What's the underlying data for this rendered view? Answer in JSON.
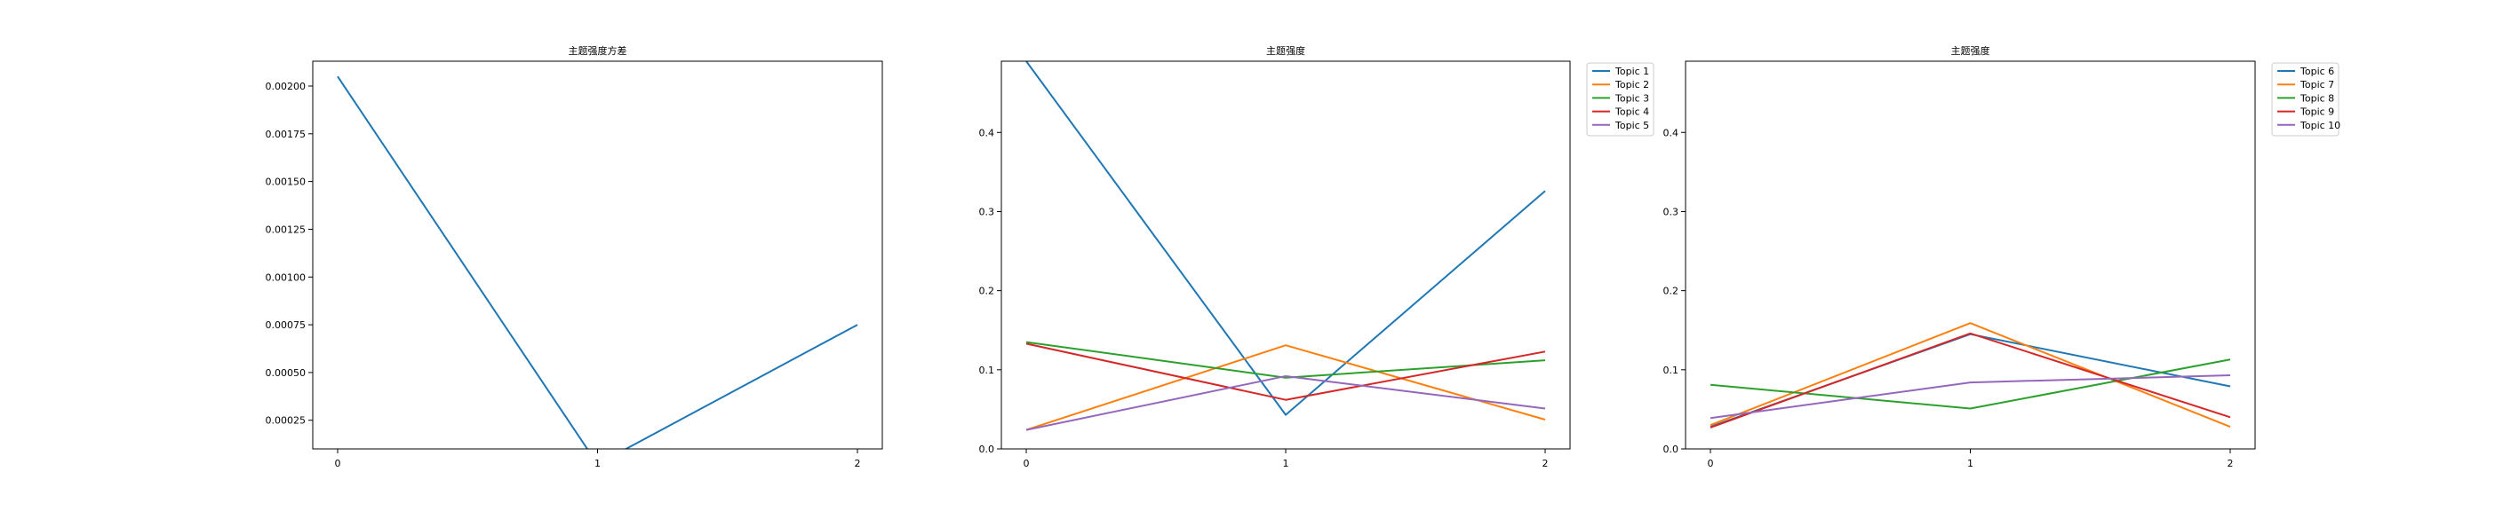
{
  "chart_data": [
    {
      "type": "line",
      "title": "主题强度方差",
      "xlabel": "",
      "ylabel": "",
      "x": [
        0,
        1,
        2
      ],
      "xticks": [
        "0",
        "1",
        "2"
      ],
      "ylim": [
        0.0001,
        0.00213
      ],
      "yticks": [
        "0.00025",
        "0.00050",
        "0.00075",
        "0.00100",
        "0.00125",
        "0.00150",
        "0.00175",
        "0.00200"
      ],
      "ytick_values": [
        0.00025,
        0.0005,
        0.00075,
        0.001,
        0.00125,
        0.0015,
        0.00175,
        0.002
      ],
      "grid": false,
      "legend": null,
      "series": [
        {
          "values": [
            0.00205,
            2e-05,
            0.00075
          ],
          "color": "#1f77b4"
        }
      ]
    },
    {
      "type": "line",
      "title": "主题强度",
      "xlabel": "",
      "ylabel": "",
      "x": [
        0,
        1,
        2
      ],
      "xticks": [
        "0",
        "1",
        "2"
      ],
      "ylim": [
        0,
        0.49
      ],
      "yticks": [
        "0.0",
        "0.1",
        "0.2",
        "0.3",
        "0.4"
      ],
      "ytick_values": [
        0,
        0.1,
        0.2,
        0.3,
        0.4
      ],
      "grid": false,
      "legend": "outside-upper-right",
      "series": [
        {
          "name": "Topic 1",
          "values": [
            0.49,
            0.043,
            0.326
          ],
          "color": "#1f77b4"
        },
        {
          "name": "Topic 2",
          "values": [
            0.024,
            0.131,
            0.037
          ],
          "color": "#ff7f0e"
        },
        {
          "name": "Topic 3",
          "values": [
            0.135,
            0.09,
            0.112
          ],
          "color": "#2ca02c"
        },
        {
          "name": "Topic 4",
          "values": [
            0.133,
            0.062,
            0.123
          ],
          "color": "#d62728"
        },
        {
          "name": "Topic 5",
          "values": [
            0.024,
            0.092,
            0.051
          ],
          "color": "#9467bd"
        }
      ]
    },
    {
      "type": "line",
      "title": "主题强度",
      "xlabel": "",
      "ylabel": "",
      "x": [
        0,
        1,
        2
      ],
      "xticks": [
        "0",
        "1",
        "2"
      ],
      "ylim": [
        0,
        0.49
      ],
      "yticks": [
        "0.0",
        "0.1",
        "0.2",
        "0.3",
        "0.4"
      ],
      "ytick_values": [
        0,
        0.1,
        0.2,
        0.3,
        0.4
      ],
      "grid": false,
      "legend": "outside-upper-right",
      "series": [
        {
          "name": "Topic 6",
          "values": [
            0.028,
            0.145,
            0.079
          ],
          "color": "#1f77b4"
        },
        {
          "name": "Topic 7",
          "values": [
            0.03,
            0.159,
            0.028
          ],
          "color": "#ff7f0e"
        },
        {
          "name": "Topic 8",
          "values": [
            0.081,
            0.051,
            0.113
          ],
          "color": "#2ca02c"
        },
        {
          "name": "Topic 9",
          "values": [
            0.027,
            0.146,
            0.04
          ],
          "color": "#d62728"
        },
        {
          "name": "Topic 10",
          "values": [
            0.039,
            0.084,
            0.093
          ],
          "color": "#9467bd"
        }
      ]
    }
  ]
}
